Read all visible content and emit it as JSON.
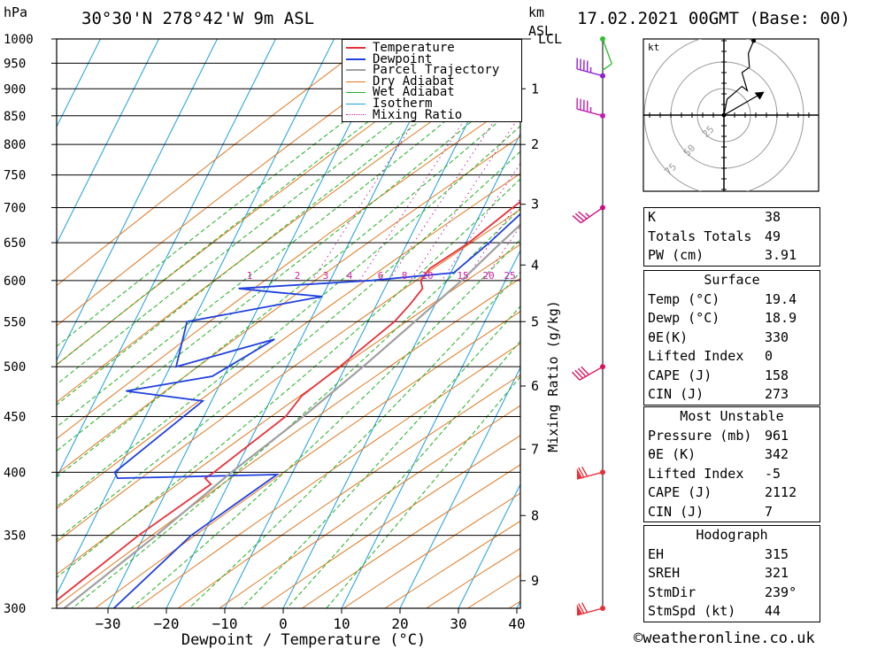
{
  "header": {
    "location": "30°30'N 278°42'W 9m ASL",
    "date": "17.02.2021 00GMT (Base: 00)",
    "unit_hpa": "hPa",
    "unit_km": "km",
    "unit_asl": "ASL"
  },
  "chart_data": {
    "type": "line",
    "title": "30°30'N 278°42'W 9m ASL",
    "xlabel": "Dewpoint / Temperature (°C)",
    "ylabel": "hPa",
    "y2label": "Mixing Ratio (g/kg)",
    "xlim": [
      -40,
      40
    ],
    "ylim": [
      1000,
      300
    ],
    "x_ticks": [
      -30,
      -20,
      -10,
      0,
      10,
      20,
      30,
      40
    ],
    "x_tick_labels": [
      "−30",
      "−20",
      "−10",
      "0",
      "10",
      "20",
      "30",
      "40"
    ],
    "pressure_levels": [
      300,
      350,
      400,
      450,
      500,
      550,
      600,
      650,
      700,
      750,
      800,
      850,
      900,
      950,
      1000
    ],
    "km_ticks": [
      {
        "label": "1",
        "p": 900
      },
      {
        "label": "2",
        "p": 800
      },
      {
        "label": "3",
        "p": 705
      },
      {
        "label": "4",
        "p": 620
      },
      {
        "label": "5",
        "p": 550
      },
      {
        "label": "6",
        "p": 480
      },
      {
        "label": "7",
        "p": 420
      },
      {
        "label": "8",
        "p": 365
      },
      {
        "label": "9",
        "p": 318
      }
    ],
    "lcl_label": "LCL",
    "lcl_p": 1000,
    "mixing_ratio_labels": [
      "1",
      "2",
      "3",
      "4",
      "6",
      "8",
      "10",
      "15",
      "20",
      "25"
    ],
    "mixing_ratio_values": [
      1,
      2,
      3,
      4,
      6,
      8,
      10,
      15,
      20,
      25
    ],
    "mixing_ratio_label_p": 600,
    "legend": [
      "Temperature",
      "Dewpoint",
      "Parcel Trajectory",
      "Dry Adiabat",
      "Wet Adiabat",
      "Isotherm",
      "Mixing Ratio"
    ],
    "legend_position": "top-right",
    "colors": {
      "temperature": "#e8303a",
      "dewpoint": "#2040e0",
      "parcel": "#a0a0a0",
      "dry_adiabat": "#e07820",
      "wet_adiabat": "#20b020",
      "isotherm": "#1e9ee0",
      "mixing_ratio": "#d020a0"
    },
    "series": [
      {
        "name": "Temperature",
        "points": [
          [
            1000,
            19.4
          ],
          [
            990,
            20.3
          ],
          [
            965,
            21.6
          ],
          [
            950,
            21.5
          ],
          [
            900,
            18.8
          ],
          [
            850,
            16.0
          ],
          [
            800,
            13.0
          ],
          [
            750,
            9.5
          ],
          [
            700,
            5.0
          ],
          [
            650,
            0.5
          ],
          [
            615,
            -4.0
          ],
          [
            600,
            -4.5
          ],
          [
            590,
            -3.5
          ],
          [
            570,
            -4.3
          ],
          [
            550,
            -5.5
          ],
          [
            500,
            -11.0
          ],
          [
            470,
            -15.0
          ],
          [
            450,
            -16.0
          ],
          [
            400,
            -23.5
          ],
          [
            395,
            -24.5
          ],
          [
            390,
            -23.0
          ],
          [
            350,
            -31.0
          ],
          [
            320,
            -36.5
          ],
          [
            300,
            -40.5
          ]
        ]
      },
      {
        "name": "Dewpoint",
        "points": [
          [
            1000,
            18.9
          ],
          [
            980,
            18.6
          ],
          [
            965,
            20.4
          ],
          [
            950,
            20.0
          ],
          [
            900,
            17.5
          ],
          [
            850,
            15.0
          ],
          [
            830,
            10.0
          ],
          [
            810,
            8.0
          ],
          [
            790,
            10.0
          ],
          [
            780,
            8.0
          ],
          [
            770,
            10.0
          ],
          [
            750,
            10.0
          ],
          [
            700,
            7.5
          ],
          [
            650,
            4.0
          ],
          [
            610,
            0.5
          ],
          [
            600,
            -13.0
          ],
          [
            590,
            -35.0
          ],
          [
            585,
            -28.0
          ],
          [
            580,
            -20.0
          ],
          [
            550,
            -41.0
          ],
          [
            500,
            -39.0
          ],
          [
            530,
            -24.5
          ],
          [
            490,
            -32.0
          ],
          [
            475,
            -45.5
          ],
          [
            465,
            -31.5
          ],
          [
            400,
            -40.5
          ],
          [
            395,
            -39.5
          ],
          [
            398,
            -12.5
          ],
          [
            350,
            -22.0
          ],
          [
            300,
            -29.0
          ]
        ]
      },
      {
        "name": "Parcel Trajectory",
        "points": [
          [
            1000,
            19.4
          ],
          [
            950,
            18.0
          ],
          [
            900,
            16.5
          ],
          [
            850,
            15.5
          ],
          [
            800,
            13.5
          ],
          [
            750,
            12.0
          ],
          [
            700,
            9.5
          ],
          [
            650,
            6.0
          ],
          [
            600,
            2.5
          ],
          [
            550,
            -2.0
          ],
          [
            500,
            -7.0
          ],
          [
            450,
            -13.0
          ],
          [
            400,
            -20.5
          ],
          [
            350,
            -28.0
          ],
          [
            300,
            -37.5
          ]
        ]
      }
    ],
    "wind_barbs": [
      {
        "p": 300,
        "speed_kt": 70,
        "dir_deg": 255
      },
      {
        "p": 400,
        "speed_kt": 70,
        "dir_deg": 255
      },
      {
        "p": 500,
        "speed_kt": 40,
        "dir_deg": 240
      },
      {
        "p": 700,
        "speed_kt": 35,
        "dir_deg": 235
      },
      {
        "p": 850,
        "speed_kt": 45,
        "dir_deg": 285
      },
      {
        "p": 925,
        "speed_kt": 45,
        "dir_deg": 285
      },
      {
        "p": 1000,
        "speed_kt": 10,
        "dir_deg": 160
      }
    ],
    "wind_barb_colors": [
      "#e8303a",
      "#e8303a",
      "#e0105a",
      "#d01080",
      "#c020b0",
      "#9020d0",
      "#30c030"
    ],
    "hodograph": {
      "unit": "kt",
      "ring_labels": [
        "25",
        "50",
        "75"
      ],
      "rings_kt": [
        25,
        50,
        75
      ],
      "trace_kt": [
        [
          0,
          0
        ],
        [
          3,
          15
        ],
        [
          17,
          27
        ],
        [
          22,
          23
        ],
        [
          17,
          40
        ],
        [
          24,
          45
        ],
        [
          23,
          58
        ],
        [
          28,
          70
        ]
      ],
      "storm_motion_kt": [
        38,
        22
      ]
    }
  },
  "indices": {
    "rows": [
      {
        "label": "K",
        "value": "38"
      },
      {
        "label": "Totals Totals",
        "value": "49"
      },
      {
        "label": "PW (cm)",
        "value": "3.91"
      }
    ]
  },
  "surface": {
    "title": "Surface",
    "rows": [
      {
        "label": "Temp (°C)",
        "value": "19.4"
      },
      {
        "label": "Dewp (°C)",
        "value": "18.9"
      },
      {
        "label": "θE(K)",
        "value": "330"
      },
      {
        "label": "Lifted Index",
        "value": "0"
      },
      {
        "label": "CAPE (J)",
        "value": "158"
      },
      {
        "label": "CIN (J)",
        "value": "273"
      }
    ]
  },
  "most_unstable": {
    "title": "Most Unstable",
    "rows": [
      {
        "label": "Pressure (mb)",
        "value": "961"
      },
      {
        "label": "θE (K)",
        "value": "342"
      },
      {
        "label": "Lifted Index",
        "value": "-5"
      },
      {
        "label": "CAPE (J)",
        "value": "2112"
      },
      {
        "label": "CIN (J)",
        "value": "7"
      }
    ]
  },
  "hodograph_table": {
    "title": "Hodograph",
    "rows": [
      {
        "label": "EH",
        "value": "315"
      },
      {
        "label": "SREH",
        "value": "321"
      },
      {
        "label": "StmDir",
        "value": "239°"
      },
      {
        "label": "StmSpd (kt)",
        "value": "44"
      }
    ]
  },
  "footer": {
    "copyright": "©weatheronline.co.uk"
  }
}
